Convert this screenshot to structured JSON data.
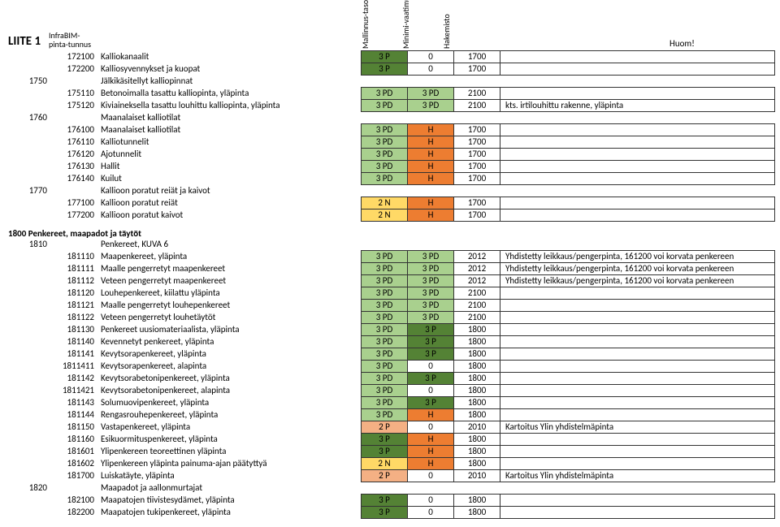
{
  "page": {
    "title": "LIITE 1",
    "infrabim": "InfraBIM-pinta-tunnus",
    "cols": [
      "Mallinnus-taso",
      "Minimi-vaatimus",
      "Hakemisto"
    ],
    "huom": "Huom!",
    "colors": {
      "darkgreen": "#548235",
      "green": "#a9d08e",
      "yellow": "#ffd966",
      "orange": "#ed7d31",
      "ltorange": "#f4b084"
    }
  },
  "rows": [
    {
      "code": "",
      "sub": "172100",
      "desc": "Kalliokanaalit",
      "c1": "3 P",
      "c1c": "darkgreen",
      "c2": "0",
      "c3": "1700",
      "note": ""
    },
    {
      "code": "",
      "sub": "172200",
      "desc": "Kalliosyvennykset ja kuopat",
      "c1": "3 P",
      "c1c": "darkgreen",
      "c2": "0",
      "c3": "1700",
      "note": ""
    },
    {
      "code": "1750",
      "sub": "",
      "desc": "Jälkikäsitellyt kalliopinnat",
      "nobox": true
    },
    {
      "code": "",
      "sub": "175110",
      "desc": "Betonoimalla tasattu kalliopinta, yläpinta",
      "c1": "3 PD",
      "c1c": "green",
      "c2": "3 PD",
      "c2c": "green",
      "c3": "2100",
      "note": ""
    },
    {
      "code": "",
      "sub": "175120",
      "desc": "Kiviaineksella tasattu louhittu kalliopinta, yläpinta",
      "c1": "3 PD",
      "c1c": "green",
      "c2": "3 PD",
      "c2c": "green",
      "c3": "2100",
      "note": "kts. irtilouhittu rakenne, yläpinta"
    },
    {
      "code": "1760",
      "sub": "",
      "desc": "Maanalaiset kalliotilat",
      "nobox": true
    },
    {
      "code": "",
      "sub": "176100",
      "desc": "Maanalaiset kalliotilat",
      "c1": "3 PD",
      "c1c": "green",
      "c2": "H",
      "c2c": "orange",
      "c3": "1700",
      "note": ""
    },
    {
      "code": "",
      "sub": "176110",
      "desc": "Kalliotunnelit",
      "c1": "3 PD",
      "c1c": "green",
      "c2": "H",
      "c2c": "orange",
      "c3": "1700",
      "note": ""
    },
    {
      "code": "",
      "sub": "176120",
      "desc": "Ajotunnelit",
      "c1": "3 PD",
      "c1c": "green",
      "c2": "H",
      "c2c": "orange",
      "c3": "1700",
      "note": ""
    },
    {
      "code": "",
      "sub": "176130",
      "desc": "Hallit",
      "c1": "3 PD",
      "c1c": "green",
      "c2": "H",
      "c2c": "orange",
      "c3": "1700",
      "note": ""
    },
    {
      "code": "",
      "sub": "176140",
      "desc": "Kuilut",
      "c1": "3 PD",
      "c1c": "green",
      "c2": "H",
      "c2c": "orange",
      "c3": "1700",
      "note": ""
    },
    {
      "code": "1770",
      "sub": "",
      "desc": "Kallioon poratut reiät ja kaivot",
      "nobox": true
    },
    {
      "code": "",
      "sub": "177100",
      "desc": "Kallioon poratut reiät",
      "c1": "2 N",
      "c1c": "yellow",
      "c2": "H",
      "c2c": "orange",
      "c3": "1700",
      "note": ""
    },
    {
      "code": "",
      "sub": "177200",
      "desc": "Kallioon poratut kaivot",
      "c1": "2 N",
      "c1c": "yellow",
      "c2": "H",
      "c2c": "orange",
      "c3": "1700",
      "note": ""
    }
  ],
  "section2": {
    "title": "1800 Penkereet, maapadot ja täytöt",
    "rows": [
      {
        "code": "1810",
        "sub": "",
        "desc": "Penkereet, KUVA 6",
        "nobox": true
      },
      {
        "code": "",
        "sub": "181110",
        "desc": "Maapenkereet, yläpinta",
        "c1": "3 PD",
        "c1c": "green",
        "c2": "3 PD",
        "c2c": "green",
        "c3": "2012",
        "note": "Yhdistetty leikkaus/pengerpinta, 161200 voi korvata penkereen"
      },
      {
        "code": "",
        "sub": "181111",
        "desc": "Maalle pengerretyt maapenkereet",
        "c1": "3 PD",
        "c1c": "green",
        "c2": "3 PD",
        "c2c": "green",
        "c3": "2012",
        "note": "Yhdistetty leikkaus/pengerpinta, 161200 voi korvata penkereen"
      },
      {
        "code": "",
        "sub": "181112",
        "desc": "Veteen pengerretyt maapenkereet",
        "c1": "3 PD",
        "c1c": "green",
        "c2": "3 PD",
        "c2c": "green",
        "c3": "2012",
        "note": "Yhdistetty leikkaus/pengerpinta, 161200 voi korvata penkereen"
      },
      {
        "code": "",
        "sub": "181120",
        "desc": "Louhepenkereet, kiilattu yläpinta",
        "c1": "3 PD",
        "c1c": "green",
        "c2": "3 PD",
        "c2c": "green",
        "c3": "2100",
        "note": ""
      },
      {
        "code": "",
        "sub": "181121",
        "desc": "Maalle pengerretyt louhepenkereet",
        "c1": "3 PD",
        "c1c": "green",
        "c2": "3 PD",
        "c2c": "green",
        "c3": "2100",
        "note": ""
      },
      {
        "code": "",
        "sub": "181122",
        "desc": "Veteen pengerretyt louhetäytöt",
        "c1": "3 PD",
        "c1c": "green",
        "c2": "3 PD",
        "c2c": "green",
        "c3": "2100",
        "note": ""
      },
      {
        "code": "",
        "sub": "181130",
        "desc": "Penkereet uusiomateriaalista, yläpinta",
        "c1": "3 PD",
        "c1c": "green",
        "c2": "3 P",
        "c2c": "darkgreen",
        "c3": "1800",
        "note": ""
      },
      {
        "code": "",
        "sub": "181140",
        "desc": "Kevennetyt penkereet, yläpinta",
        "c1": "3 PD",
        "c1c": "green",
        "c2": "3 P",
        "c2c": "darkgreen",
        "c3": "1800",
        "note": ""
      },
      {
        "code": "",
        "sub": "181141",
        "desc": "Kevytsorapenkereet, yläpinta",
        "c1": "3 PD",
        "c1c": "green",
        "c2": "3 P",
        "c2c": "darkgreen",
        "c3": "1800",
        "note": ""
      },
      {
        "code": "",
        "sub": "1811411",
        "desc": "Kevytsorapenkereet, alapinta",
        "c1": "3 PD",
        "c1c": "green",
        "c2": "0",
        "c3": "1800",
        "note": ""
      },
      {
        "code": "",
        "sub": "181142",
        "desc": "Kevytsorabetonipenkereet, yläpinta",
        "c1": "3 PD",
        "c1c": "green",
        "c2": "3 P",
        "c2c": "darkgreen",
        "c3": "1800",
        "note": ""
      },
      {
        "code": "",
        "sub": "1811421",
        "desc": "Kevytsorabetonipenkereet, alapinta",
        "c1": "3 PD",
        "c1c": "green",
        "c2": "0",
        "c3": "1800",
        "note": ""
      },
      {
        "code": "",
        "sub": "181143",
        "desc": "Solumuovipenkereet, yläpinta",
        "c1": "3 PD",
        "c1c": "green",
        "c2": "3 P",
        "c2c": "darkgreen",
        "c3": "1800",
        "note": ""
      },
      {
        "code": "",
        "sub": "181144",
        "desc": "Rengasrouhepenkereet, yläpinta",
        "c1": "3 PD",
        "c1c": "green",
        "c2": "H",
        "c2c": "orange",
        "c3": "1800",
        "note": ""
      },
      {
        "code": "",
        "sub": "181150",
        "desc": "Vastapenkereet, yläpinta",
        "c1": "2 P",
        "c1c": "ltorange",
        "c2": "0",
        "c3": "2010",
        "note": "Kartoitus Ylin yhdistelmäpinta"
      },
      {
        "code": "",
        "sub": "181160",
        "desc": "Esikuormituspenkereet, yläpinta",
        "c1": "3 P",
        "c1c": "darkgreen",
        "c2": "H",
        "c2c": "orange",
        "c3": "1800",
        "note": ""
      },
      {
        "code": "",
        "sub": "181601",
        "desc": "Ylipenkereen teoreettinen yläpinta",
        "c1": "3 P",
        "c1c": "darkgreen",
        "c2": "H",
        "c2c": "orange",
        "c3": "1800",
        "note": ""
      },
      {
        "code": "",
        "sub": "181602",
        "desc": "Ylipenkereen yläpinta painuma-ajan päätyttyä",
        "c1": "2 N",
        "c1c": "yellow",
        "c2": "H",
        "c2c": "orange",
        "c3": "1800",
        "note": ""
      },
      {
        "code": "",
        "sub": "181700",
        "desc": "Luiskatäyte, yläpinta",
        "c1": "2 P",
        "c1c": "ltorange",
        "c2": "0",
        "c3": "2010",
        "note": "Kartoitus Ylin yhdistelmäpinta"
      },
      {
        "code": "1820",
        "sub": "",
        "desc": "Maapadot ja aallonmurtajat",
        "nobox": true
      },
      {
        "code": "",
        "sub": "182100",
        "desc": "Maapatojen tiivistesydämet, yläpinta",
        "c1": "3 P",
        "c1c": "darkgreen",
        "c2": "0",
        "c3": "1800",
        "note": ""
      },
      {
        "code": "",
        "sub": "182200",
        "desc": "Maapatojen tukipenkereet, yläpinta",
        "c1": "3 P",
        "c1c": "darkgreen",
        "c2": "0",
        "c3": "1800",
        "note": ""
      }
    ]
  }
}
